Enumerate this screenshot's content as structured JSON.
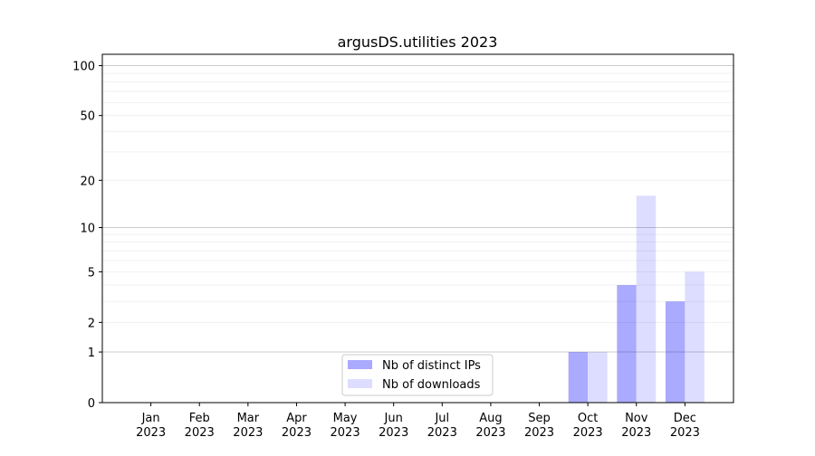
{
  "chart_data": {
    "type": "bar",
    "title": "argusDS.utilities 2023",
    "xlabel": "",
    "ylabel": "",
    "y_scale": "log(1+y)",
    "ylim": [
      0,
      117
    ],
    "categories": [
      "Jan\n2023",
      "Feb\n2023",
      "Mar\n2023",
      "Apr\n2023",
      "May\n2023",
      "Jun\n2023",
      "Jul\n2023",
      "Aug\n2023",
      "Sep\n2023",
      "Oct\n2023",
      "Nov\n2023",
      "Dec\n2023"
    ],
    "yticks": [
      0,
      1,
      2,
      5,
      10,
      20,
      50,
      100
    ],
    "grid": true,
    "legend_position": "lower-center",
    "series": [
      {
        "name": "Nb of distinct IPs",
        "color": "#aaaaff",
        "values": [
          0,
          0,
          0,
          0,
          0,
          0,
          0,
          0,
          0,
          1,
          4,
          3
        ]
      },
      {
        "name": "Nb of downloads",
        "color": "#ddddff",
        "values": [
          0,
          0,
          0,
          0,
          0,
          0,
          0,
          0,
          0,
          1,
          16,
          5
        ]
      }
    ]
  }
}
